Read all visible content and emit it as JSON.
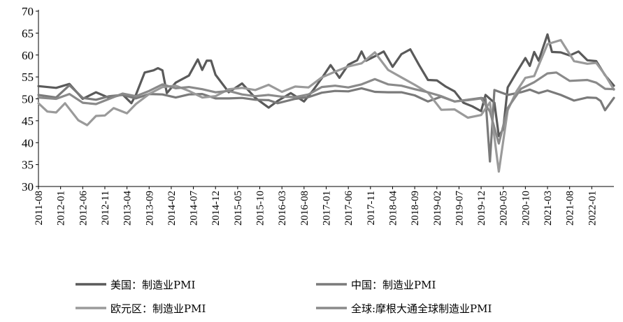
{
  "chart_data": {
    "type": "line",
    "title": "",
    "xlabel": "",
    "ylabel": "",
    "ylim": [
      30,
      70
    ],
    "yticks": [
      30,
      35,
      40,
      45,
      50,
      55,
      60,
      65,
      70
    ],
    "x_start": "2011-08",
    "x_end": "2022-06",
    "x_tick_labels": [
      "2011-08",
      "2012-01",
      "2012-06",
      "2012-11",
      "2013-04",
      "2013-09",
      "2014-02",
      "2014-07",
      "2014-12",
      "2015-05",
      "2015-10",
      "2016-03",
      "2016-08",
      "2017-01",
      "2017-06",
      "2017-11",
      "2018-04",
      "2018-09",
      "2019-02",
      "2019-07",
      "2019-12",
      "2020-05",
      "2020-10",
      "2021-03",
      "2021-08",
      "2022-01"
    ],
    "grid": false,
    "legend_position": "bottom",
    "series": [
      {
        "name": "美国：制造业PMI",
        "color": "#5a5a5a",
        "points": [
          [
            "2011-08",
            52.9
          ],
          [
            "2011-12",
            52.5
          ],
          [
            "2012-03",
            53.4
          ],
          [
            "2012-06",
            50.0
          ],
          [
            "2012-09",
            51.5
          ],
          [
            "2012-12",
            50.2
          ],
          [
            "2013-03",
            51.0
          ],
          [
            "2013-05",
            49.0
          ],
          [
            "2013-06",
            50.9
          ],
          [
            "2013-08",
            56.0
          ],
          [
            "2013-10",
            56.5
          ],
          [
            "2013-11",
            57.0
          ],
          [
            "2013-12",
            56.5
          ],
          [
            "2014-01",
            51.3
          ],
          [
            "2014-03",
            53.7
          ],
          [
            "2014-06",
            55.3
          ],
          [
            "2014-08",
            59.0
          ],
          [
            "2014-09",
            56.6
          ],
          [
            "2014-10",
            58.7
          ],
          [
            "2014-11",
            58.7
          ],
          [
            "2014-12",
            55.5
          ],
          [
            "2015-03",
            51.5
          ],
          [
            "2015-06",
            53.5
          ],
          [
            "2015-09",
            50.2
          ],
          [
            "2015-12",
            48.0
          ],
          [
            "2016-02",
            49.5
          ],
          [
            "2016-05",
            51.3
          ],
          [
            "2016-08",
            49.4
          ],
          [
            "2016-10",
            51.9
          ],
          [
            "2016-12",
            54.7
          ],
          [
            "2017-02",
            57.7
          ],
          [
            "2017-04",
            54.8
          ],
          [
            "2017-06",
            57.8
          ],
          [
            "2017-08",
            58.8
          ],
          [
            "2017-09",
            60.8
          ],
          [
            "2017-10",
            58.7
          ],
          [
            "2017-12",
            59.7
          ],
          [
            "2018-02",
            60.8
          ],
          [
            "2018-04",
            57.3
          ],
          [
            "2018-06",
            60.2
          ],
          [
            "2018-08",
            61.3
          ],
          [
            "2018-10",
            57.7
          ],
          [
            "2018-12",
            54.3
          ],
          [
            "2019-02",
            54.2
          ],
          [
            "2019-04",
            52.8
          ],
          [
            "2019-06",
            51.7
          ],
          [
            "2019-08",
            49.1
          ],
          [
            "2019-10",
            48.3
          ],
          [
            "2019-12",
            47.2
          ],
          [
            "2020-01",
            50.9
          ],
          [
            "2020-03",
            49.1
          ],
          [
            "2020-04",
            41.5
          ],
          [
            "2020-05",
            43.1
          ],
          [
            "2020-06",
            52.6
          ],
          [
            "2020-08",
            56.0
          ],
          [
            "2020-10",
            59.3
          ],
          [
            "2020-11",
            57.5
          ],
          [
            "2020-12",
            60.7
          ],
          [
            "2021-01",
            58.7
          ],
          [
            "2021-03",
            64.7
          ],
          [
            "2021-04",
            60.7
          ],
          [
            "2021-06",
            60.6
          ],
          [
            "2021-08",
            59.9
          ],
          [
            "2021-10",
            60.8
          ],
          [
            "2021-12",
            58.8
          ],
          [
            "2022-02",
            58.6
          ],
          [
            "2022-04",
            55.4
          ],
          [
            "2022-06",
            53.0
          ]
        ]
      },
      {
        "name": "中国：制造业PMI",
        "color": "#7a7a7a",
        "points": [
          [
            "2011-08",
            50.9
          ],
          [
            "2011-12",
            50.3
          ],
          [
            "2012-03",
            53.1
          ],
          [
            "2012-06",
            50.2
          ],
          [
            "2012-09",
            49.8
          ],
          [
            "2012-12",
            50.6
          ],
          [
            "2013-03",
            50.9
          ],
          [
            "2013-06",
            50.1
          ],
          [
            "2013-09",
            51.1
          ],
          [
            "2013-12",
            51.0
          ],
          [
            "2014-03",
            50.3
          ],
          [
            "2014-06",
            51.0
          ],
          [
            "2014-09",
            51.1
          ],
          [
            "2014-12",
            50.1
          ],
          [
            "2015-03",
            50.1
          ],
          [
            "2015-06",
            50.2
          ],
          [
            "2015-09",
            49.8
          ],
          [
            "2015-12",
            49.7
          ],
          [
            "2016-02",
            49.0
          ],
          [
            "2016-06",
            50.0
          ],
          [
            "2016-09",
            50.4
          ],
          [
            "2016-12",
            51.4
          ],
          [
            "2017-03",
            51.8
          ],
          [
            "2017-06",
            51.7
          ],
          [
            "2017-09",
            52.4
          ],
          [
            "2017-12",
            51.6
          ],
          [
            "2018-03",
            51.5
          ],
          [
            "2018-06",
            51.5
          ],
          [
            "2018-09",
            50.8
          ],
          [
            "2018-12",
            49.4
          ],
          [
            "2019-03",
            50.5
          ],
          [
            "2019-06",
            49.4
          ],
          [
            "2019-09",
            49.8
          ],
          [
            "2019-12",
            50.2
          ],
          [
            "2020-01",
            50.0
          ],
          [
            "2020-02",
            35.7
          ],
          [
            "2020-03",
            52.0
          ],
          [
            "2020-06",
            50.9
          ],
          [
            "2020-09",
            51.5
          ],
          [
            "2020-11",
            52.1
          ],
          [
            "2021-01",
            51.3
          ],
          [
            "2021-03",
            51.9
          ],
          [
            "2021-06",
            50.9
          ],
          [
            "2021-09",
            49.6
          ],
          [
            "2021-12",
            50.3
          ],
          [
            "2022-02",
            50.2
          ],
          [
            "2022-03",
            49.5
          ],
          [
            "2022-04",
            47.4
          ],
          [
            "2022-06",
            50.2
          ]
        ]
      },
      {
        "name": "欧元区：制造业PMI",
        "color": "#9a9a9a",
        "points": [
          [
            "2011-08",
            49.0
          ],
          [
            "2011-10",
            47.1
          ],
          [
            "2011-12",
            46.9
          ],
          [
            "2012-02",
            49.0
          ],
          [
            "2012-05",
            45.1
          ],
          [
            "2012-07",
            44.0
          ],
          [
            "2012-09",
            46.1
          ],
          [
            "2012-11",
            46.2
          ],
          [
            "2013-01",
            47.9
          ],
          [
            "2013-04",
            46.7
          ],
          [
            "2013-06",
            48.8
          ],
          [
            "2013-09",
            51.1
          ],
          [
            "2013-12",
            52.7
          ],
          [
            "2014-03",
            53.0
          ],
          [
            "2014-06",
            51.8
          ],
          [
            "2014-09",
            50.3
          ],
          [
            "2014-12",
            50.6
          ],
          [
            "2015-03",
            52.2
          ],
          [
            "2015-06",
            52.5
          ],
          [
            "2015-09",
            52.0
          ],
          [
            "2015-12",
            53.2
          ],
          [
            "2016-03",
            51.6
          ],
          [
            "2016-06",
            52.8
          ],
          [
            "2016-09",
            52.6
          ],
          [
            "2016-12",
            54.9
          ],
          [
            "2017-03",
            56.2
          ],
          [
            "2017-06",
            57.4
          ],
          [
            "2017-09",
            58.1
          ],
          [
            "2017-12",
            60.6
          ],
          [
            "2018-03",
            56.6
          ],
          [
            "2018-06",
            54.9
          ],
          [
            "2018-09",
            53.2
          ],
          [
            "2018-12",
            51.4
          ],
          [
            "2019-03",
            47.5
          ],
          [
            "2019-06",
            47.6
          ],
          [
            "2019-09",
            45.7
          ],
          [
            "2019-12",
            46.3
          ],
          [
            "2020-02",
            49.2
          ],
          [
            "2020-04",
            33.4
          ],
          [
            "2020-06",
            47.4
          ],
          [
            "2020-08",
            51.7
          ],
          [
            "2020-10",
            54.8
          ],
          [
            "2020-12",
            55.2
          ],
          [
            "2021-03",
            62.5
          ],
          [
            "2021-06",
            63.4
          ],
          [
            "2021-09",
            58.6
          ],
          [
            "2021-12",
            58.0
          ],
          [
            "2022-02",
            58.2
          ],
          [
            "2022-04",
            55.5
          ],
          [
            "2022-06",
            52.1
          ]
        ]
      },
      {
        "name": "全球:摩根大通全球制造业PMI",
        "color": "#8a8a8a",
        "points": [
          [
            "2011-08",
            50.3
          ],
          [
            "2011-12",
            50.0
          ],
          [
            "2012-03",
            51.1
          ],
          [
            "2012-06",
            49.1
          ],
          [
            "2012-09",
            48.8
          ],
          [
            "2012-12",
            50.0
          ],
          [
            "2013-03",
            51.2
          ],
          [
            "2013-06",
            50.6
          ],
          [
            "2013-09",
            51.8
          ],
          [
            "2013-12",
            53.3
          ],
          [
            "2014-03",
            52.4
          ],
          [
            "2014-06",
            52.7
          ],
          [
            "2014-09",
            52.2
          ],
          [
            "2014-12",
            51.5
          ],
          [
            "2015-03",
            51.8
          ],
          [
            "2015-06",
            51.0
          ],
          [
            "2015-09",
            50.6
          ],
          [
            "2015-12",
            50.9
          ],
          [
            "2016-03",
            50.5
          ],
          [
            "2016-06",
            50.4
          ],
          [
            "2016-09",
            51.0
          ],
          [
            "2016-12",
            52.7
          ],
          [
            "2017-03",
            53.0
          ],
          [
            "2017-06",
            52.6
          ],
          [
            "2017-09",
            53.3
          ],
          [
            "2017-12",
            54.5
          ],
          [
            "2018-03",
            53.3
          ],
          [
            "2018-06",
            53.0
          ],
          [
            "2018-09",
            52.2
          ],
          [
            "2018-12",
            51.5
          ],
          [
            "2019-03",
            50.6
          ],
          [
            "2019-06",
            49.4
          ],
          [
            "2019-09",
            49.7
          ],
          [
            "2019-12",
            50.1
          ],
          [
            "2020-02",
            47.1
          ],
          [
            "2020-04",
            39.8
          ],
          [
            "2020-06",
            47.9
          ],
          [
            "2020-09",
            52.3
          ],
          [
            "2020-12",
            53.8
          ],
          [
            "2021-03",
            55.8
          ],
          [
            "2021-05",
            56.0
          ],
          [
            "2021-08",
            54.1
          ],
          [
            "2021-12",
            54.3
          ],
          [
            "2022-02",
            53.7
          ],
          [
            "2022-04",
            52.3
          ],
          [
            "2022-06",
            52.2
          ]
        ]
      }
    ]
  }
}
